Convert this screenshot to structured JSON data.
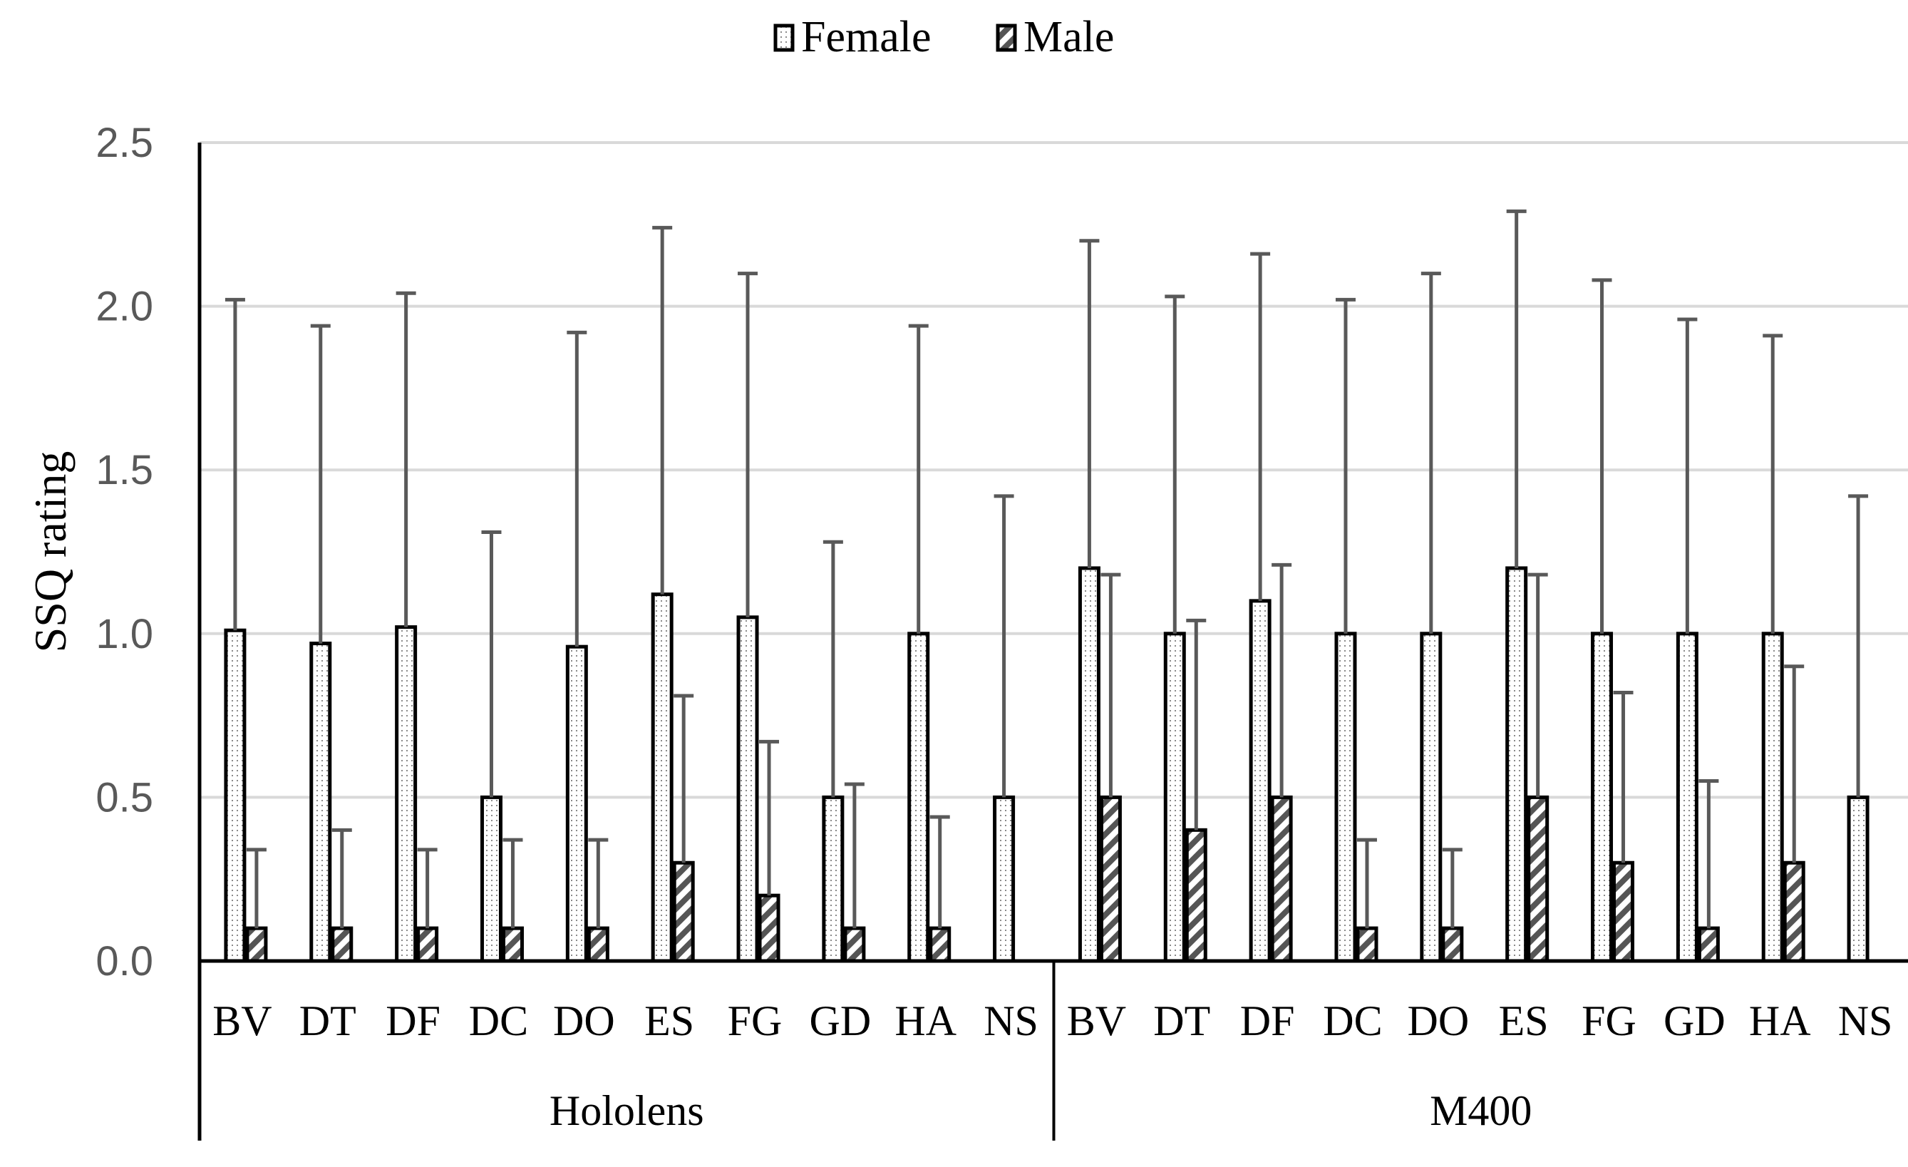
{
  "chart_data": {
    "type": "bar",
    "title": "",
    "xlabel": "",
    "ylabel": "SSQ rating",
    "ylim": [
      0,
      2.5
    ],
    "yticks": [
      "0.0",
      "0.5",
      "1.0",
      "1.5",
      "2.0",
      "2.5"
    ],
    "grid": true,
    "legend_position": "top-center",
    "groups": [
      {
        "name": "Hololens",
        "categories": [
          "BV",
          "DT",
          "DF",
          "DC",
          "DO",
          "ES",
          "FG",
          "GD",
          "HA",
          "NS"
        ],
        "series": [
          {
            "name": "Female",
            "values": [
              1.01,
              0.97,
              1.02,
              0.5,
              0.96,
              1.12,
              1.05,
              0.5,
              1.0,
              0.5
            ],
            "errors": [
              1.01,
              0.97,
              1.02,
              0.81,
              0.96,
              1.12,
              1.05,
              0.78,
              0.94,
              0.92
            ]
          },
          {
            "name": "Male",
            "values": [
              0.1,
              0.1,
              0.1,
              0.1,
              0.1,
              0.3,
              0.2,
              0.1,
              0.1,
              0.0
            ],
            "errors": [
              0.24,
              0.3,
              0.24,
              0.27,
              0.27,
              0.51,
              0.47,
              0.44,
              0.34,
              null
            ]
          }
        ]
      },
      {
        "name": "M400",
        "categories": [
          "BV",
          "DT",
          "DF",
          "DC",
          "DO",
          "ES",
          "FG",
          "GD",
          "HA",
          "NS"
        ],
        "series": [
          {
            "name": "Female",
            "values": [
              1.2,
              1.0,
              1.1,
              1.0,
              1.0,
              1.2,
              1.0,
              1.0,
              1.0,
              0.5
            ],
            "errors": [
              1.0,
              1.03,
              1.06,
              1.02,
              1.1,
              1.09,
              1.08,
              0.96,
              0.91,
              0.92
            ]
          },
          {
            "name": "Male",
            "values": [
              0.5,
              0.4,
              0.5,
              0.1,
              0.1,
              0.5,
              0.3,
              0.1,
              0.3,
              0.0
            ],
            "errors": [
              0.68,
              0.64,
              0.71,
              0.27,
              0.24,
              0.68,
              0.52,
              0.45,
              0.6,
              null
            ]
          }
        ]
      }
    ]
  }
}
